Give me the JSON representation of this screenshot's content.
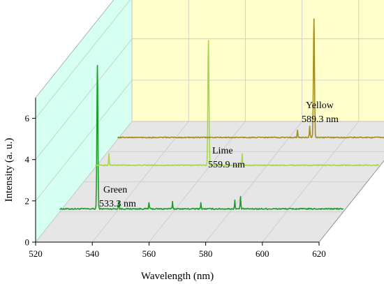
{
  "chart_data": {
    "type": "line",
    "style": "3d-waterfall",
    "xlabel": "Wavelength (nm)",
    "ylabel": "Intensity (a. u.)",
    "xlim": [
      520,
      620
    ],
    "ylim": [
      0,
      7
    ],
    "x_ticks": [
      "520",
      "540",
      "560",
      "580",
      "600",
      "620"
    ],
    "y_ticks": [
      "0",
      "2",
      "4",
      "6"
    ],
    "grid": true,
    "colors": {
      "back_wall": "#ffffcc",
      "side_wall": "#ccffee",
      "floor": "#e6e6e6",
      "gridline": "#c8c8c8"
    },
    "series": [
      {
        "color": "#1e9b2a",
        "baseline": 0.15,
        "noise": 0.06,
        "peaks": [
          {
            "x": 533.3,
            "y": 6.95
          },
          {
            "x": 540.8,
            "y": 0.35
          },
          {
            "x": 551.5,
            "y": 0.3
          },
          {
            "x": 559.8,
            "y": 0.35
          },
          {
            "x": 569.8,
            "y": 0.3
          },
          {
            "x": 581.8,
            "y": 0.4
          },
          {
            "x": 583.8,
            "y": 0.6
          }
        ]
      },
      {
        "color": "#a6d84a",
        "baseline": 0.1,
        "noise": 0.05,
        "peaks": [
          {
            "x": 524.8,
            "y": 0.55
          },
          {
            "x": 559.9,
            "y": 6.05
          },
          {
            "x": 571.8,
            "y": 0.55
          }
        ]
      },
      {
        "color": "#a48e22",
        "baseline": 0.1,
        "noise": 0.05,
        "peaks": [
          {
            "x": 583.5,
            "y": 0.35
          },
          {
            "x": 587.8,
            "y": 0.55
          },
          {
            "x": 589.3,
            "y": 5.75
          }
        ]
      }
    ],
    "annotations": [
      {
        "text": [
          "Green",
          "533.3 nm"
        ],
        "series": 0
      },
      {
        "text": [
          "Lime",
          "559.9 nm"
        ],
        "series": 1
      },
      {
        "text": [
          "Yellow",
          "589.3 nm"
        ],
        "series": 2
      }
    ]
  }
}
